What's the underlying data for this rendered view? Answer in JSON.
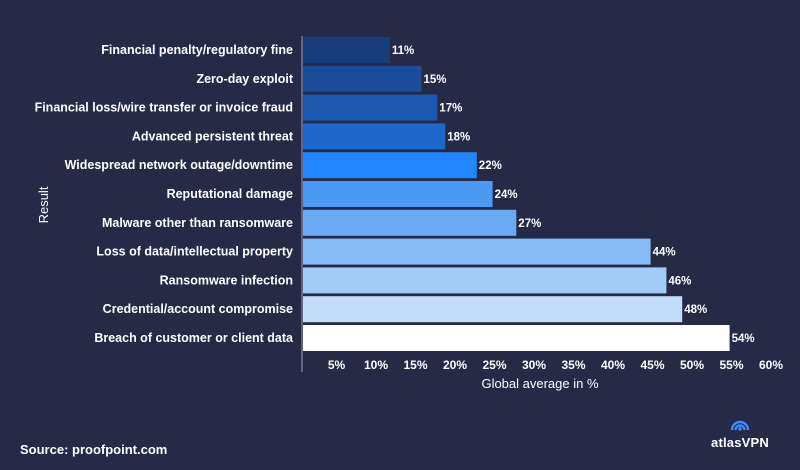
{
  "chart_data": {
    "type": "bar",
    "orientation": "horizontal",
    "categories": [
      "Financial penalty/regulatory fine",
      "Zero-day exploit",
      "Financial loss/wire transfer or invoice fraud",
      "Advanced persistent threat",
      "Widespread network outage/downtime",
      "Reputational damage",
      "Malware other than ransomware",
      "Loss of data/intellectual property",
      "Ransomware infection",
      "Credential/account compromise",
      "Breach of customer or client data"
    ],
    "values": [
      11,
      15,
      17,
      18,
      22,
      24,
      27,
      44,
      46,
      48,
      54
    ],
    "value_labels": [
      "11%",
      "15%",
      "17%",
      "18%",
      "22%",
      "24%",
      "27%",
      "44%",
      "46%",
      "48%",
      "54%"
    ],
    "bar_colors": [
      "#173d7c",
      "#1a4c99",
      "#1b58b2",
      "#1e67cb",
      "#2286ff",
      "#4b9af5",
      "#6aaaf4",
      "#86bbf6",
      "#a2cbf8",
      "#c2defb",
      "#ffffff"
    ],
    "xticks": [
      "5%",
      "10%",
      "15%",
      "20%",
      "25%",
      "30%",
      "35%",
      "40%",
      "45%",
      "50%",
      "55%",
      "60%"
    ],
    "xlim": [
      0,
      60
    ],
    "xlabel": "Global average in %",
    "ylabel": "Result",
    "grid": false
  },
  "footer": {
    "source": "Source: proofpoint.com",
    "brand": "atlasVPN"
  },
  "colors": {
    "background": "#262a47",
    "text": "#ffffff",
    "axis": "#9aa0b8",
    "logo": "#3b8bff"
  }
}
